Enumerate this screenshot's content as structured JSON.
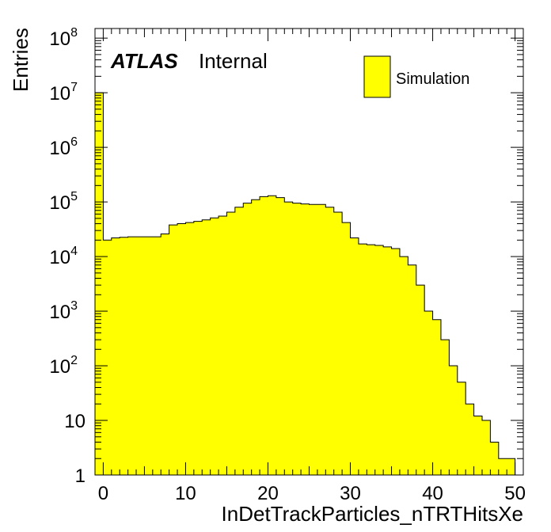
{
  "chart_data": {
    "type": "histogram",
    "title": "",
    "xlabel": "InDetTrackParticles_nTRTHitsXe",
    "ylabel": "Entries",
    "x_range": [
      -1,
      51
    ],
    "y_range": [
      1,
      150000000
    ],
    "y_scale": "log",
    "grid": false,
    "legend_position": "top-right",
    "fill_color": "#ffff00",
    "x_ticks": [
      "0",
      "10",
      "20",
      "30",
      "40",
      "50"
    ],
    "y_ticks": [
      {
        "base": "1",
        "exp": ""
      },
      {
        "base": "10",
        "exp": ""
      },
      {
        "base": "10",
        "exp": "2"
      },
      {
        "base": "10",
        "exp": "3"
      },
      {
        "base": "10",
        "exp": "4"
      },
      {
        "base": "10",
        "exp": "5"
      },
      {
        "base": "10",
        "exp": "6"
      },
      {
        "base": "10",
        "exp": "7"
      },
      {
        "base": "10",
        "exp": "8"
      }
    ],
    "atlas_label": "ATLAS",
    "atlas_sublabel": "Internal",
    "series": [
      {
        "name": "Simulation",
        "bin_edges": [
          -1,
          0,
          1,
          2,
          3,
          4,
          5,
          6,
          7,
          8,
          9,
          10,
          11,
          12,
          13,
          14,
          15,
          16,
          17,
          18,
          19,
          20,
          21,
          22,
          23,
          24,
          25,
          26,
          27,
          28,
          29,
          30,
          31,
          32,
          33,
          34,
          35,
          36,
          37,
          38,
          39,
          40,
          41,
          42,
          43,
          44,
          45,
          46,
          47,
          48,
          49,
          50,
          51
        ],
        "values": [
          10000000,
          20000,
          22000,
          22500,
          23000,
          23000,
          23000,
          23000,
          26000,
          38000,
          40000,
          42000,
          44000,
          47000,
          51000,
          55000,
          65000,
          80000,
          95000,
          110000,
          125000,
          130000,
          120000,
          100000,
          95000,
          92000,
          90000,
          90000,
          80000,
          65000,
          42000,
          22000,
          17000,
          16500,
          16000,
          15000,
          14000,
          10000,
          7000,
          3000,
          1000,
          700,
          300,
          100,
          50,
          20,
          12,
          10,
          4,
          2,
          2,
          1
        ]
      }
    ]
  }
}
